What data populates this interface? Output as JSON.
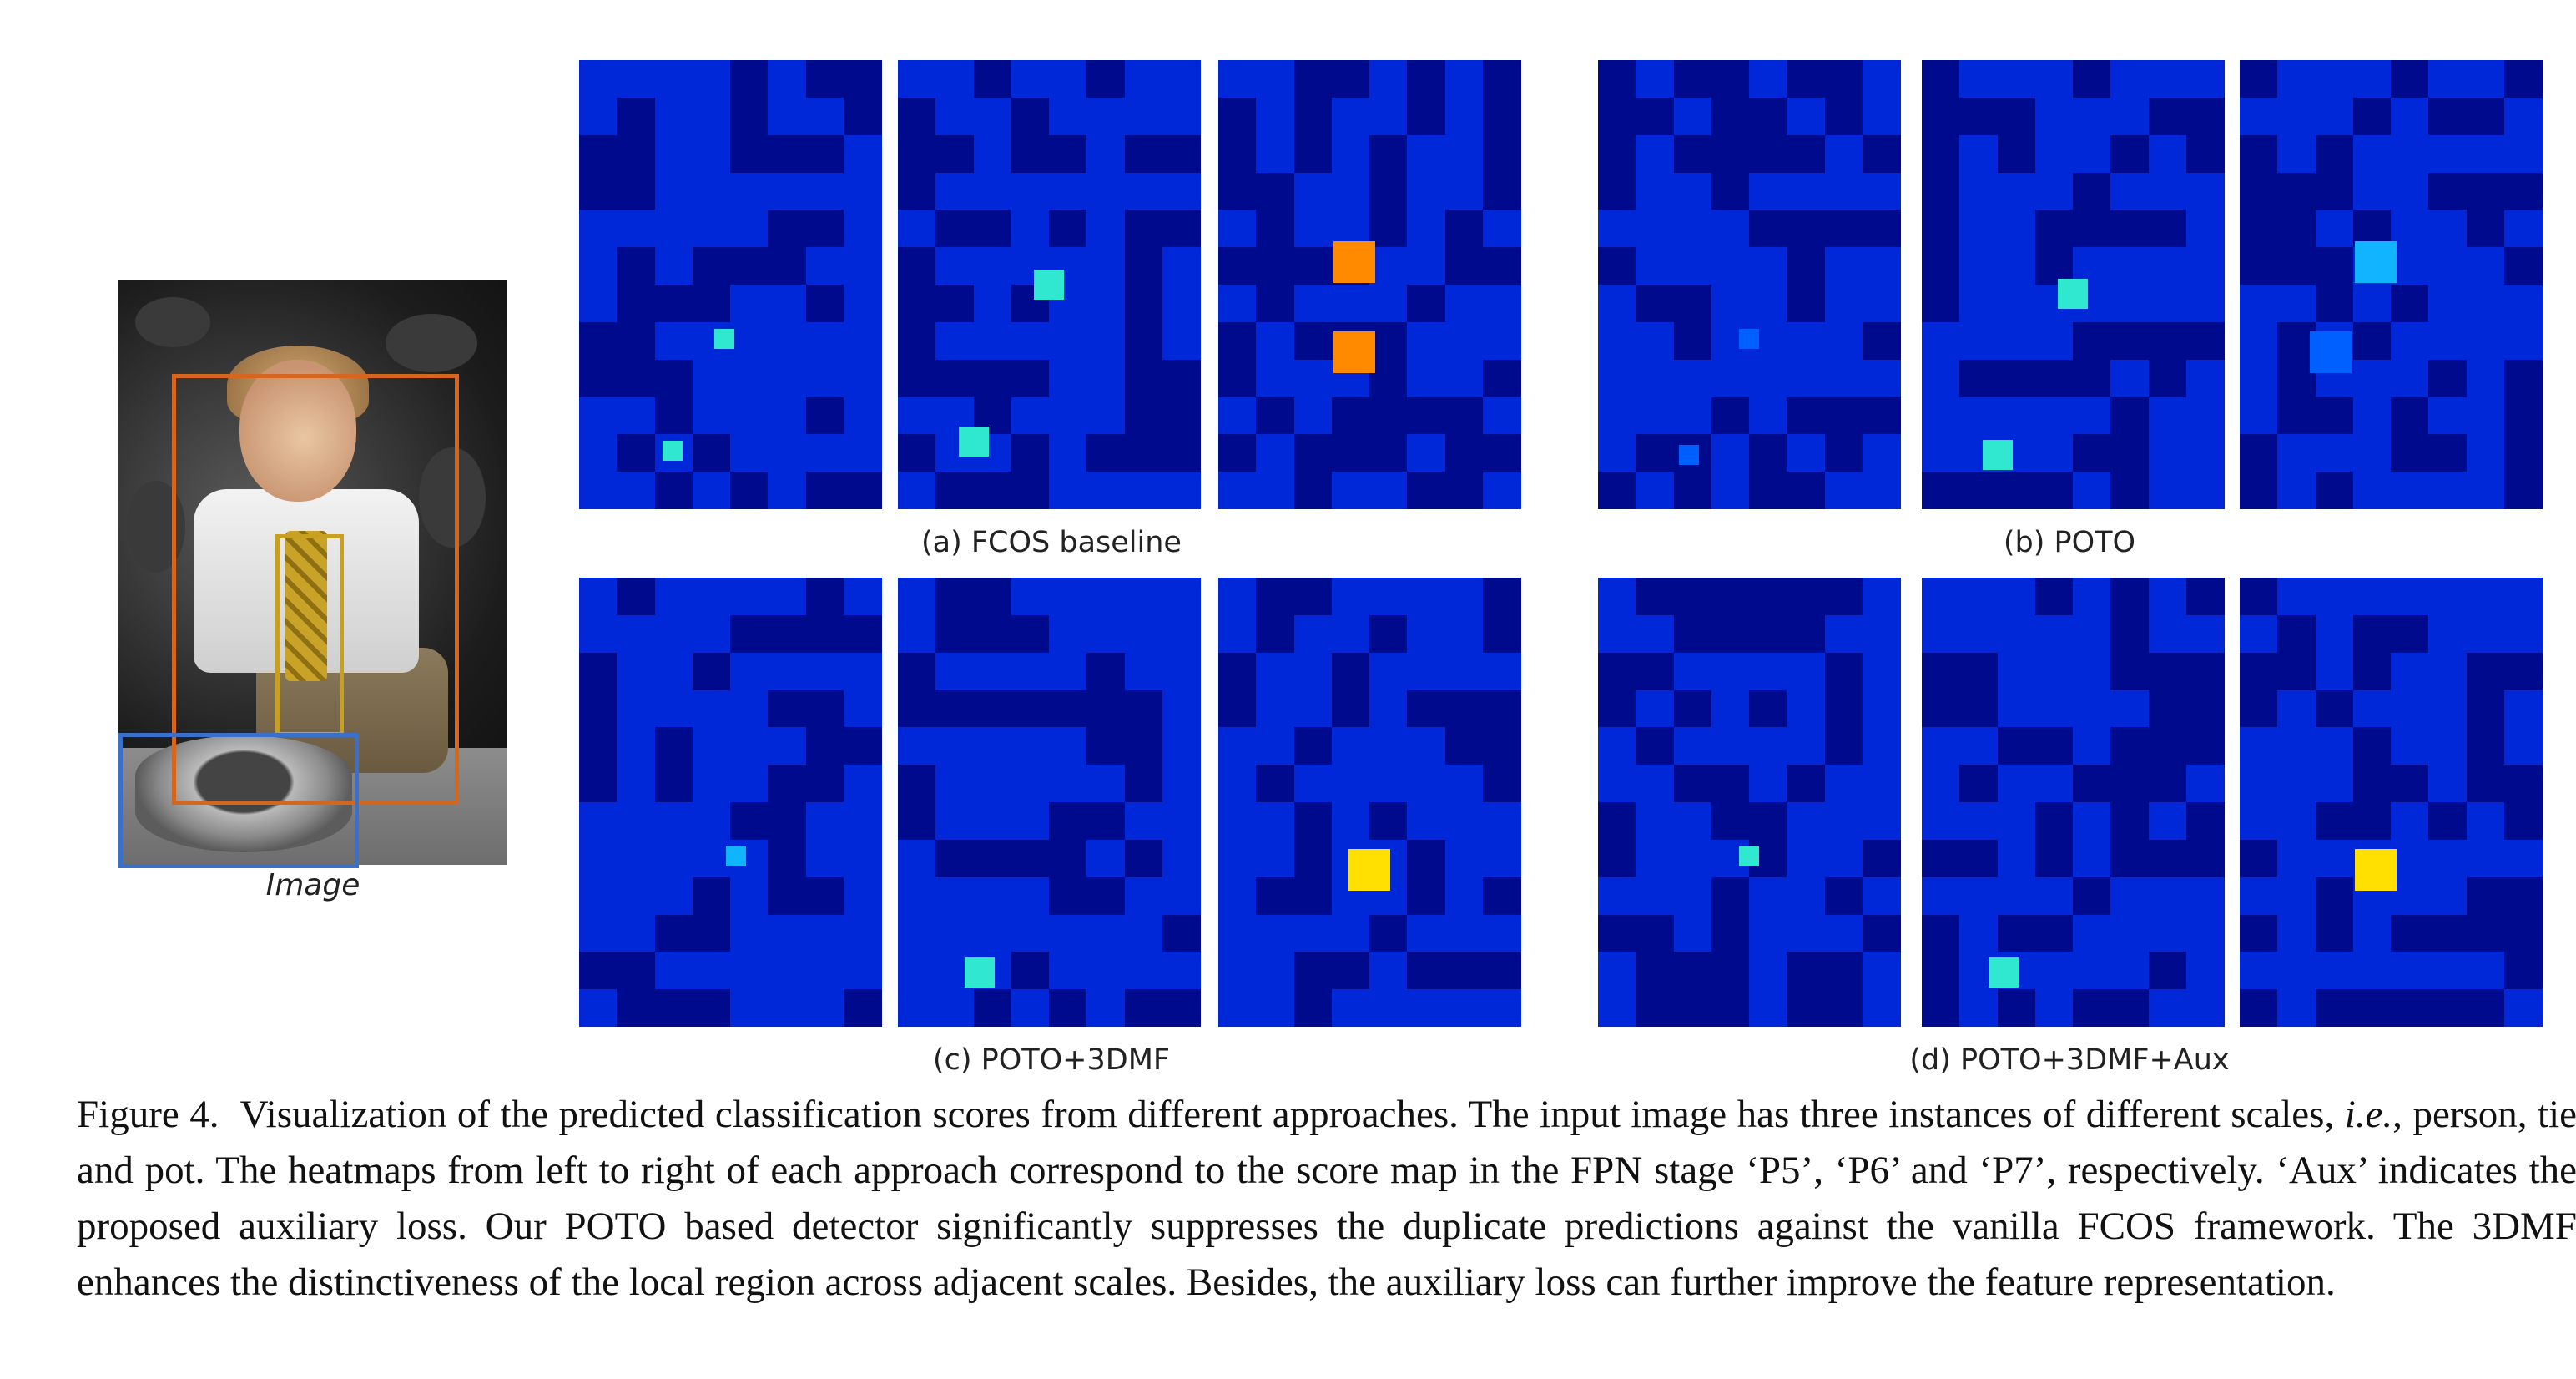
{
  "figure": {
    "image_label": "Image",
    "box_colors": {
      "person": "#d5661f",
      "tie": "#c8a020",
      "pot": "#3b70c8"
    },
    "colormap": [
      "#000a8c",
      "#0028d8",
      "#0060ff",
      "#10b4ff",
      "#30e8d0",
      "#90ff60",
      "#ffe000",
      "#ff8a00",
      "#ff3a00"
    ],
    "panel_captions": [
      "(a) FCOS baseline",
      "(b) POTO",
      "(c) POTO+3DMF",
      "(d) POTO+3DMF+Aux"
    ],
    "heatmaps": [
      {
        "group": "(a) FCOS baseline",
        "stage": "P5",
        "hot": [
          [
            0.48,
            0.62,
            0.5
          ],
          [
            0.31,
            0.87,
            0.45
          ]
        ]
      },
      {
        "group": "(a) FCOS baseline",
        "stage": "P6",
        "hot": [
          [
            0.5,
            0.5,
            0.55
          ],
          [
            0.25,
            0.85,
            0.5
          ]
        ]
      },
      {
        "group": "(a) FCOS baseline",
        "stage": "P7",
        "hot": [
          [
            0.45,
            0.45,
            0.85
          ],
          [
            0.45,
            0.65,
            0.9
          ]
        ]
      },
      {
        "group": "(b) POTO",
        "stage": "P5",
        "hot": [
          [
            0.5,
            0.62,
            0.3
          ],
          [
            0.3,
            0.88,
            0.25
          ]
        ]
      },
      {
        "group": "(b) POTO",
        "stage": "P6",
        "hot": [
          [
            0.5,
            0.52,
            0.5
          ],
          [
            0.25,
            0.88,
            0.45
          ]
        ]
      },
      {
        "group": "(b) POTO",
        "stage": "P7",
        "hot": [
          [
            0.45,
            0.45,
            0.4
          ],
          [
            0.3,
            0.65,
            0.3
          ]
        ]
      },
      {
        "group": "(c) POTO+3DMF",
        "stage": "P5",
        "hot": [
          [
            0.52,
            0.62,
            0.4
          ],
          [
            0.3,
            0.88,
            0.15
          ]
        ]
      },
      {
        "group": "(c) POTO+3DMF",
        "stage": "P6",
        "hot": [
          [
            0.27,
            0.88,
            0.5
          ]
        ]
      },
      {
        "group": "(c) POTO+3DMF",
        "stage": "P7",
        "hot": [
          [
            0.5,
            0.65,
            0.8
          ]
        ]
      },
      {
        "group": "(d) POTO+3DMF+Aux",
        "stage": "P5",
        "hot": [
          [
            0.5,
            0.62,
            0.45
          ]
        ]
      },
      {
        "group": "(d) POTO+3DMF+Aux",
        "stage": "P6",
        "hot": [
          [
            0.27,
            0.88,
            0.5
          ]
        ]
      },
      {
        "group": "(d) POTO+3DMF+Aux",
        "stage": "P7",
        "hot": [
          [
            0.45,
            0.65,
            0.7
          ]
        ]
      }
    ]
  },
  "caption": {
    "label": "Figure 4.",
    "part1": "Visualization of the predicted classification scores from different approaches. The input image has three instances of different scales, ",
    "ie": "i.e.",
    "part2": ", person, tie and pot. The heatmaps from left to right of each approach correspond to the score map in the FPN stage ‘P5’, ‘P6’ and ‘P7’, respectively. ‘Aux’ indicates the proposed auxiliary loss. Our POTO based detector significantly suppresses the duplicate predictions against the vanilla FCOS framework. The 3DMF enhances the distinctiveness of the local region across adjacent scales. Besides, the auxiliary loss can further improve the feature representation."
  }
}
